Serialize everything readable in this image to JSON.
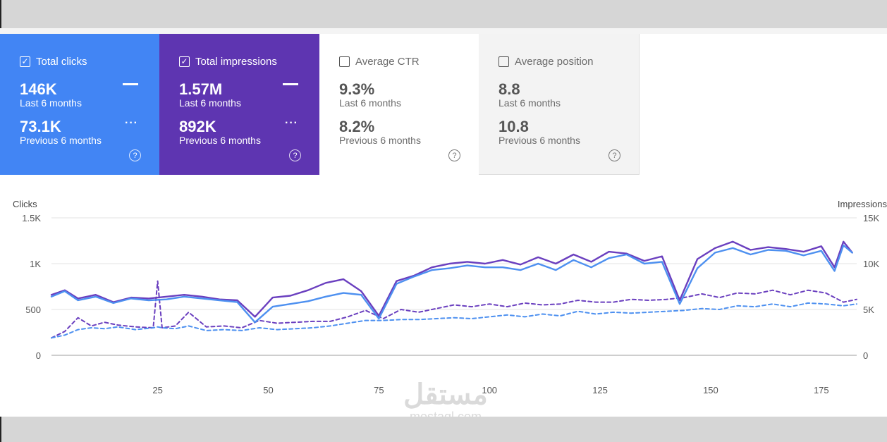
{
  "cards": {
    "clicks": {
      "title": "Total clicks",
      "checked": true,
      "value": "146K",
      "period": "Last 6 months",
      "prev_value": "73.1K",
      "prev_period": "Previous 6 months",
      "color": "#4285f4"
    },
    "impressions": {
      "title": "Total impressions",
      "checked": true,
      "value": "1.57M",
      "period": "Last 6 months",
      "prev_value": "892K",
      "prev_period": "Previous 6 months",
      "color": "#5e35b1"
    },
    "ctr": {
      "title": "Average CTR",
      "checked": false,
      "value": "9.3%",
      "period": "Last 6 months",
      "prev_value": "8.2%",
      "prev_period": "Previous 6 months"
    },
    "position": {
      "title": "Average position",
      "checked": false,
      "value": "8.8",
      "period": "Last 6 months",
      "prev_value": "10.8",
      "prev_period": "Previous 6 months"
    }
  },
  "icons": {
    "checkbox_checked": "check-icon",
    "help": "help-circle-icon",
    "solid_legend": "solid-line-icon",
    "dashed_legend": "dashed-line-icon",
    "help_glyph": "?",
    "check_glyph": "✓",
    "dots_glyph": "···"
  },
  "watermark": {
    "arabic": "مستقل",
    "latin": "mostaql.com"
  },
  "chart_data": {
    "type": "line",
    "ylabel_left": "Clicks",
    "ylabel_right": "Impressions",
    "left_ticks": [
      "0",
      "500",
      "1K",
      "1.5K"
    ],
    "left_tick_values": [
      0,
      500,
      1000,
      1500
    ],
    "right_ticks": [
      "0",
      "5K",
      "10K",
      "15K"
    ],
    "right_tick_values": [
      0,
      5000,
      10000,
      15000
    ],
    "x_ticks": [
      25,
      50,
      75,
      100,
      125,
      150,
      175
    ],
    "x_range": [
      1,
      183
    ],
    "ylim_left": [
      0,
      1500
    ],
    "ylim_right": [
      0,
      15000
    ],
    "grid": "horizontal",
    "colors": {
      "clicks": "#4d90f0",
      "impressions": "#6a3fbf"
    },
    "series": [
      {
        "name": "Total clicks",
        "style": "solid",
        "axis": "left",
        "x": [
          1,
          4,
          7,
          11,
          15,
          19,
          23,
          27,
          31,
          35,
          39,
          43,
          47,
          51,
          55,
          59,
          63,
          67,
          71,
          75,
          79,
          83,
          87,
          91,
          95,
          99,
          103,
          107,
          111,
          115,
          119,
          123,
          127,
          131,
          135,
          139,
          143,
          147,
          151,
          155,
          159,
          163,
          167,
          171,
          175,
          178,
          180,
          182
        ],
        "values": [
          640,
          700,
          600,
          640,
          570,
          620,
          600,
          610,
          640,
          620,
          600,
          580,
          360,
          530,
          560,
          590,
          640,
          680,
          660,
          400,
          780,
          860,
          930,
          950,
          980,
          960,
          960,
          930,
          1000,
          930,
          1040,
          960,
          1060,
          1100,
          1000,
          1020,
          560,
          950,
          1120,
          1170,
          1100,
          1150,
          1140,
          1090,
          1140,
          920,
          1200,
          1120
        ]
      },
      {
        "name": "Total impressions",
        "style": "solid",
        "axis": "right",
        "x": [
          1,
          4,
          7,
          11,
          15,
          19,
          23,
          27,
          31,
          35,
          39,
          43,
          47,
          51,
          55,
          59,
          63,
          67,
          71,
          75,
          79,
          83,
          87,
          91,
          95,
          99,
          103,
          107,
          111,
          115,
          119,
          123,
          127,
          131,
          135,
          139,
          143,
          147,
          151,
          155,
          159,
          163,
          167,
          171,
          175,
          178,
          180,
          182
        ],
        "values": [
          6600,
          7100,
          6200,
          6600,
          5800,
          6300,
          6200,
          6400,
          6600,
          6400,
          6100,
          6000,
          4200,
          6300,
          6500,
          7100,
          7900,
          8300,
          7000,
          4300,
          8100,
          8700,
          9600,
          10000,
          10200,
          10000,
          10400,
          9900,
          10700,
          10000,
          11000,
          10200,
          11300,
          11100,
          10300,
          10800,
          6000,
          10500,
          11700,
          12400,
          11500,
          11800,
          11600,
          11300,
          11900,
          9600,
          12400,
          11200
        ]
      },
      {
        "name": "Previous clicks",
        "style": "dashed",
        "axis": "left",
        "x": [
          1,
          4,
          7,
          10,
          13,
          16,
          20,
          24,
          25,
          26,
          29,
          32,
          36,
          40,
          44,
          48,
          52,
          56,
          60,
          64,
          68,
          72,
          76,
          80,
          84,
          88,
          92,
          96,
          100,
          104,
          108,
          112,
          116,
          120,
          124,
          128,
          132,
          136,
          140,
          144,
          148,
          152,
          156,
          160,
          164,
          168,
          172,
          176,
          180,
          183
        ],
        "values": [
          190,
          220,
          280,
          300,
          290,
          310,
          280,
          300,
          310,
          300,
          290,
          320,
          270,
          280,
          270,
          300,
          280,
          290,
          300,
          320,
          350,
          380,
          380,
          390,
          390,
          400,
          410,
          400,
          420,
          440,
          420,
          450,
          430,
          480,
          450,
          470,
          460,
          470,
          480,
          490,
          510,
          500,
          540,
          530,
          560,
          530,
          570,
          560,
          540,
          560
        ]
      },
      {
        "name": "Previous impressions",
        "style": "dashed",
        "axis": "right",
        "x": [
          1,
          4,
          7,
          10,
          13,
          16,
          20,
          24,
          25,
          26,
          29,
          32,
          36,
          40,
          44,
          48,
          52,
          56,
          60,
          64,
          68,
          72,
          76,
          80,
          84,
          88,
          92,
          96,
          100,
          104,
          108,
          112,
          116,
          120,
          124,
          128,
          132,
          136,
          140,
          144,
          148,
          152,
          156,
          160,
          164,
          168,
          172,
          176,
          180,
          183
        ],
        "values": [
          1900,
          2600,
          4100,
          3200,
          3600,
          3300,
          3100,
          3000,
          8100,
          3000,
          3200,
          4700,
          3100,
          3200,
          3000,
          3800,
          3500,
          3600,
          3700,
          3700,
          4200,
          4900,
          4000,
          5000,
          4700,
          5100,
          5500,
          5300,
          5600,
          5300,
          5700,
          5500,
          5600,
          6000,
          5800,
          5800,
          6100,
          6000,
          6100,
          6300,
          6700,
          6300,
          6800,
          6700,
          7100,
          6600,
          7100,
          6800,
          5800,
          6100
        ]
      }
    ]
  }
}
